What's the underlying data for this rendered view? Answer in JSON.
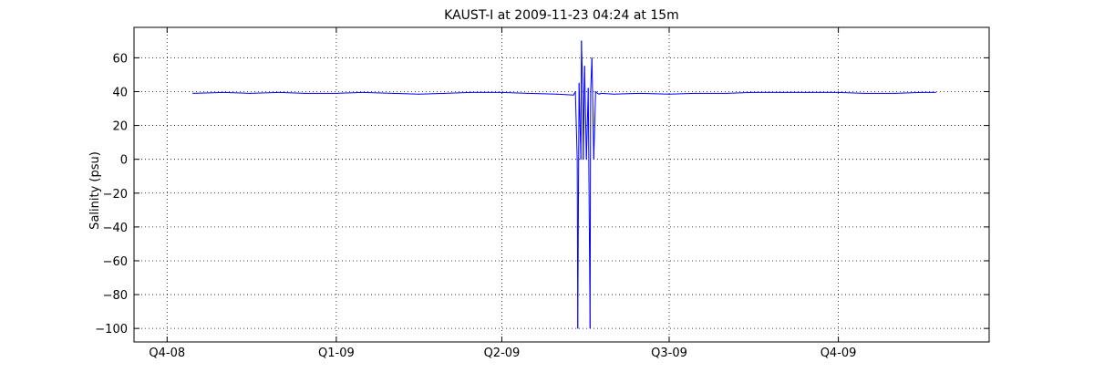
{
  "chart_data": {
    "type": "line",
    "title": "KAUST-I at 2009-11-23 04:24 at 15m",
    "xlabel": "",
    "ylabel": "Salinity (psu)",
    "xlim": [
      "2008-09-13",
      "2009-12-22"
    ],
    "ylim": [
      -108,
      78
    ],
    "grid": true,
    "legend": "none",
    "x_ticks": [
      {
        "date": "2008-10-01",
        "label": "Q4-08"
      },
      {
        "date": "2009-01-01",
        "label": "Q1-09"
      },
      {
        "date": "2009-04-01",
        "label": "Q2-09"
      },
      {
        "date": "2009-07-01",
        "label": "Q3-09"
      },
      {
        "date": "2009-10-01",
        "label": "Q4-09"
      }
    ],
    "y_ticks": [
      {
        "value": 60,
        "label": "60"
      },
      {
        "value": 40,
        "label": "40"
      },
      {
        "value": 20,
        "label": "20"
      },
      {
        "value": 0,
        "label": "0"
      },
      {
        "value": -20,
        "label": "−20"
      },
      {
        "value": -40,
        "label": "−40"
      },
      {
        "value": -60,
        "label": "−60"
      },
      {
        "value": -80,
        "label": "−80"
      },
      {
        "value": -100,
        "label": "−100"
      }
    ],
    "series": [
      {
        "color": "#0000ff",
        "x": [
          "2008-10-15",
          "2008-11-01",
          "2008-11-15",
          "2008-12-01",
          "2008-12-15",
          "2009-01-01",
          "2009-01-15",
          "2009-02-01",
          "2009-02-15",
          "2009-03-01",
          "2009-03-15",
          "2009-04-01",
          "2009-04-15",
          "2009-05-01",
          "2009-05-10",
          "2009-05-11",
          "2009-05-12",
          "2009-05-12",
          "2009-05-13",
          "2009-05-14",
          "2009-05-14",
          "2009-05-15",
          "2009-05-15",
          "2009-05-16",
          "2009-05-17",
          "2009-05-18",
          "2009-05-19",
          "2009-05-19",
          "2009-05-20",
          "2009-05-21",
          "2009-05-22",
          "2009-05-23",
          "2009-05-24",
          "2009-05-25",
          "2009-06-01",
          "2009-06-15",
          "2009-07-01",
          "2009-07-15",
          "2009-08-01",
          "2009-08-15",
          "2009-09-01",
          "2009-09-15",
          "2009-10-01",
          "2009-10-15",
          "2009-11-01",
          "2009-11-15",
          "2009-11-23"
        ],
        "values": [
          39,
          39.5,
          39,
          39.5,
          39,
          39,
          39.5,
          39,
          38.5,
          39,
          39.5,
          39.5,
          39,
          38.5,
          38,
          40,
          0,
          -100,
          45,
          0,
          70,
          40,
          0,
          55,
          0,
          42,
          -100,
          40,
          60,
          0,
          40,
          39,
          38.5,
          39,
          38.5,
          39,
          38.5,
          39,
          39,
          39.5,
          39.5,
          39.5,
          39.5,
          39,
          39,
          39.5,
          39.5
        ]
      }
    ]
  }
}
